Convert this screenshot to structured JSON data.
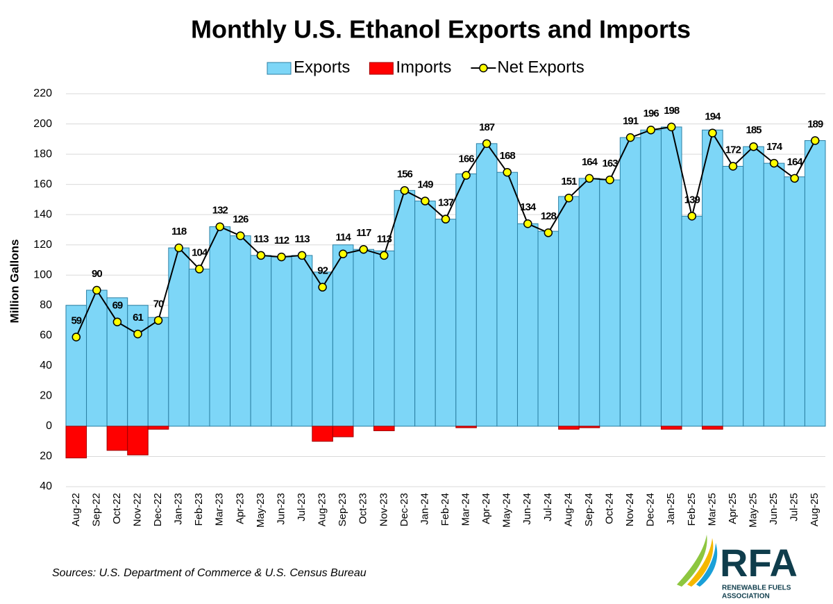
{
  "chart_data": {
    "type": "bar",
    "title": "Monthly U.S. Ethanol Exports and Imports",
    "y_label": "Million Gallons",
    "source": "Sources: U.S. Department of Commerce & U.S. Census Bureau",
    "categories": [
      "Aug-22",
      "Sep-22",
      "Oct-22",
      "Nov-22",
      "Dec-22",
      "Jan-23",
      "Feb-23",
      "Mar-23",
      "Apr-23",
      "May-23",
      "Jun-23",
      "Jul-23",
      "Aug-23",
      "Sep-23",
      "Oct-23",
      "Nov-23",
      "Dec-23",
      "Jan-24",
      "Feb-24",
      "Mar-24",
      "Apr-24",
      "May-24",
      "Jun-24",
      "Jul-24",
      "Aug-24",
      "Sep-24",
      "Oct-24",
      "Nov-24",
      "Dec-24",
      "Jan-25",
      "Feb-25",
      "Mar-25",
      "Apr-25",
      "May-25",
      "Jun-25",
      "Jul-25",
      "Aug-25"
    ],
    "series": [
      {
        "name": "Exports",
        "type": "bar",
        "color": "#7dd6f7",
        "values": [
          80,
          90,
          85,
          80,
          72,
          118,
          104,
          132,
          126,
          113,
          112,
          113,
          102,
          120,
          117,
          116,
          156,
          149,
          137,
          167,
          187,
          168,
          134,
          129,
          152,
          164,
          163,
          191,
          196,
          198,
          139,
          196,
          172,
          185,
          174,
          165,
          189
        ]
      },
      {
        "name": "Imports",
        "type": "bar",
        "color": "#ff0000",
        "values": [
          -21,
          0,
          -16,
          -19,
          -2,
          0,
          0,
          0,
          0,
          0,
          0,
          0,
          -10,
          -7,
          0,
          -3,
          0,
          0,
          0,
          -1,
          0,
          0,
          0,
          0,
          -2,
          -1,
          0,
          0,
          0,
          -2,
          0,
          -2,
          0,
          0,
          0,
          0,
          0
        ]
      },
      {
        "name": "Net Exports",
        "type": "line",
        "color": "#000000",
        "marker_color": "#ffff00",
        "values": [
          59,
          90,
          69,
          61,
          70,
          118,
          104,
          132,
          126,
          113,
          112,
          113,
          92,
          114,
          117,
          113,
          156,
          149,
          137,
          166,
          187,
          168,
          134,
          128,
          151,
          164,
          163,
          191,
          196,
          198,
          139,
          194,
          172,
          185,
          174,
          164,
          189
        ]
      }
    ],
    "ylim": [
      -40,
      220
    ],
    "yticks": [
      {
        "value": -40,
        "label": "40"
      },
      {
        "value": -20,
        "label": "20"
      },
      0,
      20,
      40,
      60,
      80,
      100,
      120,
      140,
      160,
      180,
      200,
      220
    ],
    "grid": true,
    "legend": "top"
  },
  "logo": {
    "text": "RFA",
    "subtitle": [
      "RENEWABLE FUELS",
      "ASSOCIATION"
    ]
  }
}
